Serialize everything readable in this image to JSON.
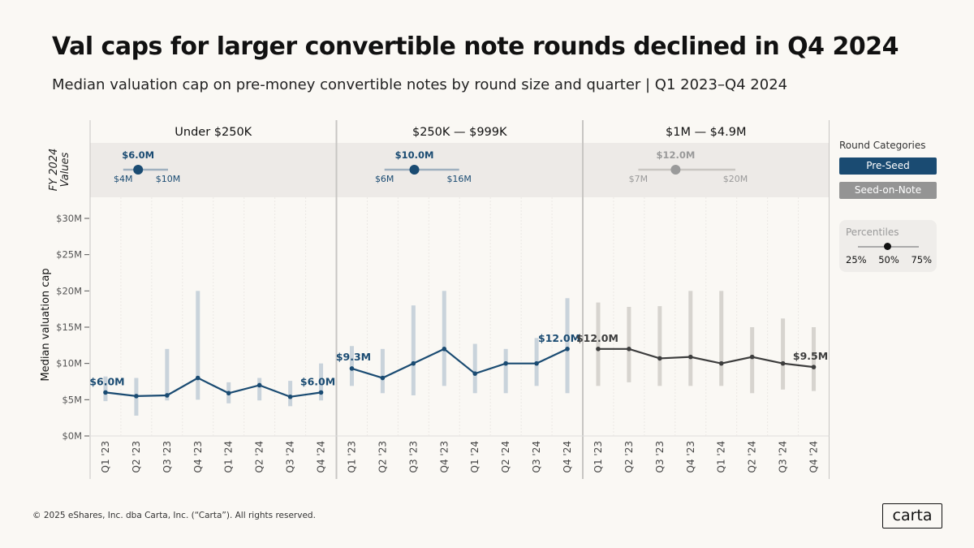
{
  "title": "Val caps for larger convertible note rounds declined in Q4 2024",
  "subtitle": "Median valuation cap on pre-money convertible notes by round size and quarter | Q1 2023–Q4 2024",
  "footer": "© 2025 eShares, Inc. dba Carta, Inc. (“Carta”). All rights reserved.",
  "logo": "carta",
  "legend": {
    "title": "Round Categories",
    "items": [
      {
        "label": "Pre-Seed",
        "color": "#1a4b72"
      },
      {
        "label": "Seed-on-Note",
        "color": "#949494"
      }
    ],
    "percentiles": {
      "title": "Percentiles",
      "labels": [
        "25%",
        "50%",
        "75%"
      ]
    }
  },
  "chart_data": {
    "type": "line",
    "ylabel": "Median valuation cap",
    "band_label": [
      "FY 2024",
      "Values"
    ],
    "ylim": [
      0,
      30
    ],
    "yticks": [
      "$0M",
      "$5M",
      "$10M",
      "$15M",
      "$20M",
      "$25M",
      "$30M"
    ],
    "categories": [
      "Q1 '23",
      "Q2 '23",
      "Q3 '23",
      "Q4 '23",
      "Q1 '24",
      "Q2 '24",
      "Q3 '24",
      "Q4 '24"
    ],
    "colors": {
      "pre_seed": "#1a4b72",
      "pre_seed_range": "#c9d3db",
      "seed": "#3d3d3d",
      "seed_range": "#d7d4cf",
      "seed_band": "#9a9a9a"
    },
    "panels": [
      {
        "name": "Under $250K",
        "category": "Pre-Seed",
        "median": [
          6.0,
          5.5,
          5.6,
          8.0,
          5.9,
          7.0,
          5.4,
          6.0
        ],
        "p25": [
          4.8,
          2.8,
          4.9,
          5.0,
          4.5,
          4.9,
          4.1,
          4.9
        ],
        "p75": [
          8.2,
          8.0,
          12.0,
          20.0,
          7.4,
          8.0,
          7.6,
          10.0
        ],
        "first_label": "$6.0M",
        "last_label": "$6.0M",
        "fy2024": {
          "median": 6,
          "p25": 4,
          "p75": 10,
          "median_label": "$6.0M",
          "p25_label": "$4M",
          "p75_label": "$10M"
        }
      },
      {
        "name": "$250K — $999K",
        "category": "Pre-Seed",
        "median": [
          9.3,
          8.0,
          10.0,
          12.0,
          8.6,
          10.0,
          10.0,
          12.0
        ],
        "p25": [
          6.9,
          5.9,
          5.6,
          6.9,
          5.9,
          5.9,
          6.9,
          5.9
        ],
        "p75": [
          12.4,
          12.0,
          18.0,
          20.0,
          12.7,
          12.0,
          13.5,
          19.0
        ],
        "first_label": "$9.3M",
        "last_label": "$12.0M",
        "fy2024": {
          "median": 10,
          "p25": 6,
          "p75": 16,
          "median_label": "$10.0M",
          "p25_label": "$6M",
          "p75_label": "$16M"
        }
      },
      {
        "name": "$1M — $4.9M",
        "category": "Seed-on-Note",
        "median": [
          12.0,
          12.0,
          10.7,
          10.9,
          10.0,
          10.9,
          10.0,
          9.5
        ],
        "p25": [
          6.9,
          7.4,
          6.9,
          6.9,
          6.9,
          5.9,
          6.4,
          6.2
        ],
        "p75": [
          18.4,
          17.8,
          17.9,
          20.0,
          20.0,
          15.0,
          16.2,
          15.0
        ],
        "first_label": "$12.0M",
        "last_label": "$9.5M",
        "fy2024": {
          "median": 12,
          "p25": 7,
          "p75": 20,
          "median_label": "$12.0M",
          "p25_label": "$7M",
          "p75_label": "$20M"
        }
      }
    ]
  }
}
